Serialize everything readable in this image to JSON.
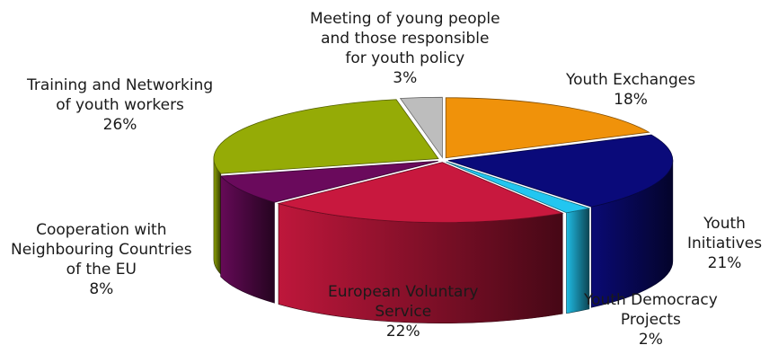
{
  "chart_data": {
    "type": "pie",
    "variant": "3d-exploded",
    "slices": [
      {
        "name": "Youth Exchanges",
        "label_lines": [
          "Youth Exchanges"
        ],
        "value": 18,
        "value_label": "18%",
        "color": "#f0920a"
      },
      {
        "name": "Youth Initiatives",
        "label_lines": [
          "Youth",
          "Initiatives"
        ],
        "value": 21,
        "value_label": "21%",
        "color": "#0a0a7a"
      },
      {
        "name": "Youth Democracy Projects",
        "label_lines": [
          "Youth Democracy",
          "Projects"
        ],
        "value": 2,
        "value_label": "2%",
        "color": "#22c6f0"
      },
      {
        "name": "European Voluntary Service",
        "label_lines": [
          "European Voluntary",
          "Service"
        ],
        "value": 22,
        "value_label": "22%",
        "color": "#c8183e"
      },
      {
        "name": "Cooperation with Neighbouring Countries of the EU",
        "label_lines": [
          "Cooperation with",
          "Neighbouring Countries",
          "of the EU"
        ],
        "value": 8,
        "value_label": "8%",
        "color": "#6a0a5c"
      },
      {
        "name": "Training and Networking of youth workers",
        "label_lines": [
          "Training and Networking",
          "of youth workers"
        ],
        "value": 26,
        "value_label": "26%",
        "color": "#95ab06"
      },
      {
        "name": "Meeting of young people and those responsible for youth policy",
        "label_lines": [
          "Meeting of young people",
          "and those responsible",
          "for youth policy"
        ],
        "value": 3,
        "value_label": "3%",
        "color": "#bdbdbd"
      }
    ],
    "title": "",
    "legend": "none"
  }
}
